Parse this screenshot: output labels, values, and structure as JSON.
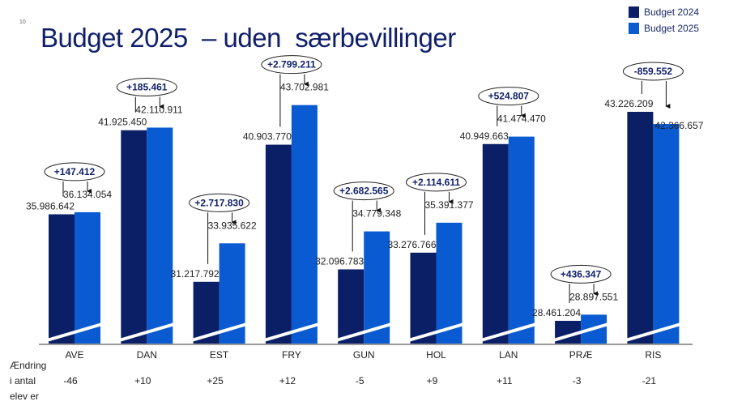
{
  "page_number": "10",
  "title": "Budget 2025  – uden  særbevillinger",
  "colors": {
    "budget_2024": "#0b1f66",
    "budget_2025": "#0a5bd1",
    "title": "#0f1f6b"
  },
  "chart_data": {
    "type": "bar",
    "title": "Budget 2025  – uden  særbevillinger",
    "categories": [
      "AVE",
      "DAN",
      "EST",
      "FRY",
      "GUN",
      "HOL",
      "LAN",
      "PRÆ",
      "RIS"
    ],
    "series": [
      {
        "name": "Budget 2024",
        "values": [
          35986642,
          41925450,
          31217792,
          40903770,
          32096783,
          33276766,
          40949663,
          28461204,
          43226209
        ],
        "labels": [
          "35.986.642",
          "41.925.450",
          "31.217.792",
          "40.903.770",
          "32.096.783",
          "33.276.766",
          "40.949.663",
          "28.461.204",
          "43.226.209"
        ]
      },
      {
        "name": "Budget 2025",
        "values": [
          36134054,
          42110911,
          33935622,
          43702981,
          34779348,
          35391377,
          41474470,
          28897551,
          42366657
        ],
        "labels": [
          "36.134.054",
          "42.110.911",
          "33.935.622",
          "43.702.981",
          "34.779.348",
          "35.391.377",
          "41.474.470",
          "28.897.551",
          "42.366.657"
        ]
      }
    ],
    "differences": [
      "+147.412",
      "+185.461",
      "+2.717.830",
      "+2.799.211",
      "+2.682.565",
      "+2.114.611",
      "+524.807",
      "+436.347",
      "-859.552"
    ],
    "broken_axis": true,
    "legend": "top-right",
    "grid": false,
    "student_change_label": [
      "Ændring",
      "i antal",
      "elev er"
    ],
    "student_change": [
      "-46",
      "+10",
      "+25",
      "+12",
      "-5",
      "+9",
      "+11",
      "-3",
      "-21"
    ]
  }
}
